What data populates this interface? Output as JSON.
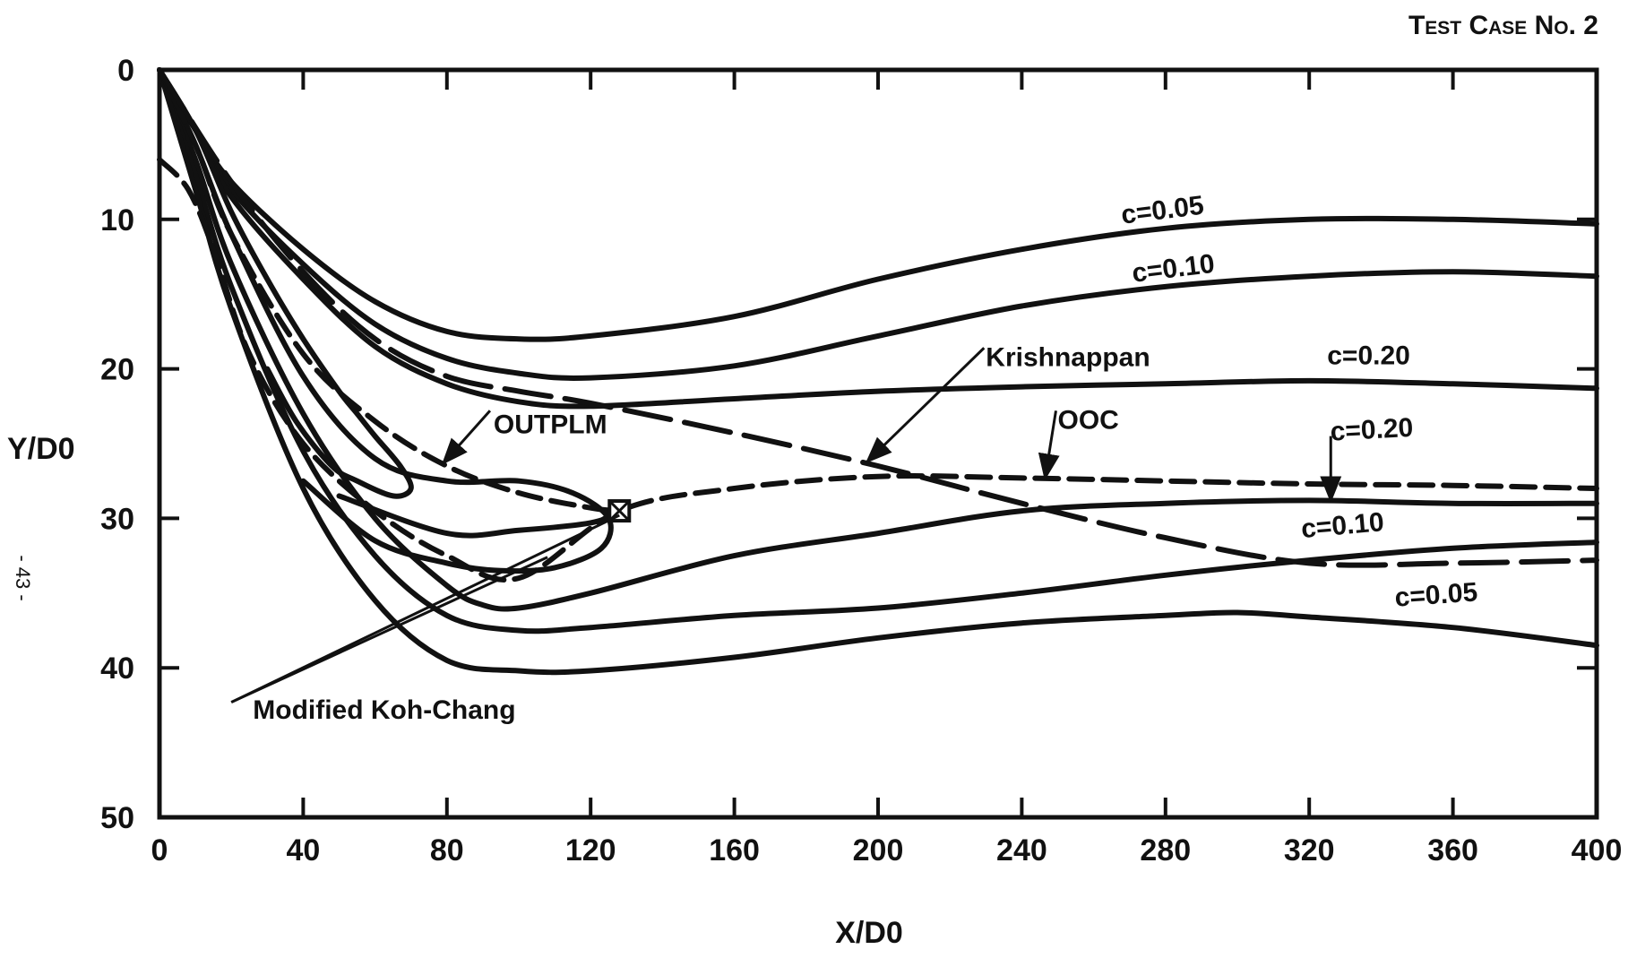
{
  "chart_data": {
    "type": "line",
    "title": "Test Case No. 2",
    "xlabel": "X/D0",
    "ylabel": "Y/D0",
    "xlim": [
      0,
      400
    ],
    "ylim": [
      0,
      50
    ],
    "y_inverted": true,
    "grid": false,
    "x_ticks": [
      "0",
      "40",
      "80",
      "120",
      "160",
      "200",
      "240",
      "280",
      "320",
      "360",
      "400"
    ],
    "y_ticks": [
      "0",
      "10",
      "20",
      "30",
      "40",
      "50"
    ],
    "page_number": "- 43 -",
    "series": [
      {
        "name": "c=0.05",
        "style": "solid",
        "x": [
          0,
          10,
          20,
          40,
          60,
          80,
          100,
          120,
          160,
          200,
          240,
          280,
          320,
          360,
          400
        ],
        "y": [
          0,
          4,
          7.5,
          12,
          15.5,
          17.5,
          18,
          17.8,
          16.5,
          14,
          12,
          10.6,
          10,
          10,
          10.3
        ]
      },
      {
        "name": "c=0.10",
        "style": "solid",
        "x": [
          0,
          10,
          20,
          40,
          60,
          80,
          100,
          120,
          160,
          200,
          240,
          280,
          320,
          360,
          400
        ],
        "y": [
          0,
          4,
          8,
          13,
          17,
          19.3,
          20.3,
          20.6,
          19.8,
          17.8,
          15.8,
          14.5,
          13.8,
          13.5,
          13.8
        ]
      },
      {
        "name": "c=0.20",
        "style": "solid",
        "x": [
          0,
          10,
          20,
          40,
          60,
          80,
          100,
          120,
          160,
          200,
          240,
          280,
          320,
          360,
          400
        ],
        "y": [
          0,
          4,
          8.5,
          14,
          18.5,
          21,
          22.2,
          22.5,
          22,
          21.5,
          21.2,
          21,
          20.8,
          21,
          21.3
        ]
      },
      {
        "name": "c=0.20",
        "style": "solid",
        "x": [
          0,
          10,
          20,
          40,
          60,
          80,
          90,
          100,
          120,
          160,
          200,
          240,
          280,
          320,
          360,
          400
        ],
        "y": [
          0,
          6,
          13,
          23,
          30,
          34.5,
          35.8,
          36,
          35,
          32.5,
          31,
          29.5,
          29,
          28.8,
          29,
          29
        ]
      },
      {
        "name": "c=0.10",
        "style": "solid",
        "x": [
          0,
          10,
          20,
          40,
          60,
          80,
          100,
          120,
          160,
          200,
          240,
          280,
          320,
          360,
          400
        ],
        "y": [
          0,
          7,
          14.5,
          25.5,
          32.5,
          36.5,
          37.5,
          37.3,
          36.5,
          36,
          35,
          33.8,
          32.8,
          32,
          31.6
        ]
      },
      {
        "name": "c=0.05",
        "style": "solid",
        "x": [
          0,
          10,
          20,
          40,
          60,
          80,
          100,
          120,
          160,
          200,
          240,
          280,
          300,
          320,
          360,
          400
        ],
        "y": [
          0,
          8,
          16,
          28,
          35.5,
          39.5,
          40.2,
          40.2,
          39.3,
          38,
          37,
          36.5,
          36.3,
          36.6,
          37.3,
          38.5
        ]
      },
      {
        "name": "",
        "style": "solid",
        "x": [
          0,
          10,
          20,
          40,
          60,
          80,
          100,
          115,
          125,
          123,
          110,
          95,
          80,
          60,
          40
        ],
        "y": [
          0,
          5,
          11,
          20.5,
          26,
          27.5,
          27.5,
          28.3,
          30,
          32,
          33.3,
          33.5,
          33,
          31.5,
          27.5
        ]
      },
      {
        "name": "",
        "style": "solid",
        "x": [
          0,
          10,
          20,
          30,
          40,
          50,
          55,
          60,
          67,
          70,
          65,
          55,
          48,
          38,
          30
        ],
        "y": [
          0,
          4,
          9.5,
          14,
          18,
          21.5,
          23,
          24.5,
          26.5,
          28,
          28.5,
          27.5,
          26.5,
          23.5,
          20
        ]
      },
      {
        "name": "",
        "style": "solid",
        "x": [
          50,
          80,
          100,
          120,
          128
        ],
        "y": [
          28.5,
          31,
          30.8,
          30.3,
          29.6
        ]
      },
      {
        "name": "OUTPLM",
        "style": "dashed",
        "x": [
          0,
          10,
          20,
          40,
          60,
          80,
          100,
          120,
          128
        ],
        "y": [
          0,
          5,
          11,
          19,
          23.5,
          26.5,
          28.3,
          29.3,
          29.5
        ]
      },
      {
        "name": "OOC",
        "style": "dashed",
        "x": [
          0,
          8,
          15,
          25,
          40,
          60,
          80,
          100,
          128,
          160,
          200,
          240,
          280,
          320,
          360,
          400
        ],
        "y": [
          6,
          8,
          12,
          19,
          25,
          29.5,
          32.5,
          34,
          29.5,
          28,
          27.2,
          27.3,
          27.5,
          27.7,
          27.8,
          28
        ]
      },
      {
        "name": "Krishnappan",
        "style": "long-dashed",
        "x": [
          0,
          20,
          40,
          60,
          80,
          100,
          120,
          160,
          200,
          240,
          280,
          320,
          360,
          400
        ],
        "y": [
          0,
          7.5,
          13.5,
          18,
          20.5,
          21.5,
          22.3,
          24.3,
          26.5,
          29,
          31.3,
          33,
          33,
          32.8
        ]
      }
    ],
    "marker": {
      "name": "square-marker",
      "x": 128,
      "y": 29.5
    },
    "annotations": [
      {
        "text": "c=0.05",
        "x": 268,
        "y": 10.3,
        "rotate": -7
      },
      {
        "text": "c=0.10",
        "x": 271,
        "y": 14.2,
        "rotate": -7
      },
      {
        "text": "c=0.20",
        "x": 325,
        "y": 19.7,
        "rotate": 0
      },
      {
        "text": "Krishnappan",
        "x": 230,
        "y": 19.8,
        "rotate": 0
      },
      {
        "text": "OUTPLM",
        "x": 93,
        "y": 24.3,
        "rotate": 0
      },
      {
        "text": "OOC",
        "x": 250,
        "y": 24,
        "rotate": 0
      },
      {
        "text": "c=0.20",
        "x": 326,
        "y": 24.8,
        "rotate": -3
      },
      {
        "text": "c=0.10",
        "x": 318,
        "y": 31.3,
        "rotate": -5
      },
      {
        "text": "c=0.05",
        "x": 344,
        "y": 35.9,
        "rotate": -4
      },
      {
        "text": "Modified Koh-Chang",
        "x": 26,
        "y": 43.4,
        "rotate": 0
      }
    ],
    "leaders": [
      {
        "label": "Krishnappan",
        "from": [
          229.5,
          18.6
        ],
        "to": [
          197,
          26.2
        ],
        "arrow": true
      },
      {
        "label": "OUTPLM",
        "from": [
          92,
          22.8
        ],
        "to": [
          79,
          26.3
        ],
        "arrow": true
      },
      {
        "label": "OOC",
        "from": [
          249.5,
          22.8
        ],
        "to": [
          246.5,
          27.3
        ],
        "arrow": true
      },
      {
        "label": "c=0.20",
        "from": [
          326,
          24.5
        ],
        "to": [
          326,
          28.8
        ],
        "arrow": true
      },
      {
        "label": "Modified Koh-Chang",
        "from": [
          20,
          42.3
        ],
        "to": [
          108,
          32.6
        ],
        "arrow": false
      },
      {
        "label": "Modified Koh-Chang",
        "from": [
          20,
          42.3
        ],
        "to": [
          128,
          29.8
        ],
        "arrow": false
      }
    ]
  }
}
